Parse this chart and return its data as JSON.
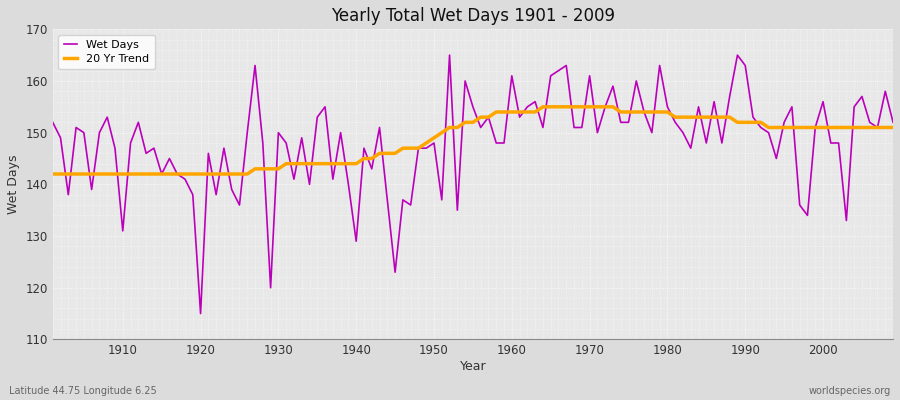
{
  "title": "Yearly Total Wet Days 1901 - 2009",
  "xlabel": "Year",
  "ylabel": "Wet Days",
  "footer_left": "Latitude 44.75 Longitude 6.25",
  "footer_right": "worldspecies.org",
  "legend_wet": "Wet Days",
  "legend_trend": "20 Yr Trend",
  "wet_color": "#BB00BB",
  "trend_color": "#FFA500",
  "bg_color": "#E8E8E8",
  "plot_bg_color": "#EBEBEB",
  "ylim": [
    110,
    170
  ],
  "xlim": [
    1901,
    2009
  ],
  "yticks": [
    110,
    120,
    130,
    140,
    150,
    160,
    170
  ],
  "years": [
    1901,
    1902,
    1903,
    1904,
    1905,
    1906,
    1907,
    1908,
    1909,
    1910,
    1911,
    1912,
    1913,
    1914,
    1915,
    1916,
    1917,
    1918,
    1919,
    1920,
    1921,
    1922,
    1923,
    1924,
    1925,
    1926,
    1927,
    1928,
    1929,
    1930,
    1931,
    1932,
    1933,
    1934,
    1935,
    1936,
    1937,
    1938,
    1939,
    1940,
    1941,
    1942,
    1943,
    1944,
    1945,
    1946,
    1947,
    1948,
    1949,
    1950,
    1951,
    1952,
    1953,
    1954,
    1955,
    1956,
    1957,
    1958,
    1959,
    1960,
    1961,
    1962,
    1963,
    1964,
    1965,
    1966,
    1967,
    1968,
    1969,
    1970,
    1971,
    1972,
    1973,
    1974,
    1975,
    1976,
    1977,
    1978,
    1979,
    1980,
    1981,
    1982,
    1983,
    1984,
    1985,
    1986,
    1987,
    1988,
    1989,
    1990,
    1991,
    1992,
    1993,
    1994,
    1995,
    1996,
    1997,
    1998,
    1999,
    2000,
    2001,
    2002,
    2003,
    2004,
    2005,
    2006,
    2007,
    2008,
    2009
  ],
  "wet_days": [
    152,
    149,
    138,
    151,
    150,
    139,
    150,
    153,
    147,
    131,
    148,
    152,
    146,
    147,
    142,
    145,
    142,
    141,
    138,
    115,
    146,
    138,
    147,
    139,
    136,
    150,
    163,
    148,
    120,
    150,
    148,
    141,
    149,
    140,
    153,
    155,
    141,
    150,
    140,
    129,
    147,
    143,
    151,
    137,
    123,
    137,
    136,
    147,
    147,
    148,
    137,
    165,
    135,
    160,
    155,
    151,
    153,
    148,
    148,
    161,
    153,
    155,
    156,
    151,
    161,
    162,
    163,
    151,
    151,
    161,
    150,
    155,
    159,
    152,
    152,
    160,
    154,
    150,
    163,
    155,
    152,
    150,
    147,
    155,
    148,
    156,
    148,
    157,
    165,
    163,
    153,
    151,
    150,
    145,
    152,
    155,
    136,
    134,
    151,
    156,
    148,
    148,
    133,
    155,
    157,
    152,
    151,
    158,
    152
  ],
  "trend": [
    142,
    142,
    142,
    142,
    142,
    142,
    142,
    142,
    142,
    142,
    142,
    142,
    142,
    142,
    142,
    142,
    142,
    142,
    142,
    142,
    142,
    142,
    142,
    142,
    142,
    142,
    143,
    143,
    143,
    143,
    144,
    144,
    144,
    144,
    144,
    144,
    144,
    144,
    144,
    144,
    145,
    145,
    146,
    146,
    146,
    147,
    147,
    147,
    148,
    149,
    150,
    151,
    151,
    152,
    152,
    153,
    153,
    154,
    154,
    154,
    154,
    154,
    154,
    155,
    155,
    155,
    155,
    155,
    155,
    155,
    155,
    155,
    155,
    154,
    154,
    154,
    154,
    154,
    154,
    154,
    153,
    153,
    153,
    153,
    153,
    153,
    153,
    153,
    152,
    152,
    152,
    152,
    151,
    151,
    151,
    151,
    151,
    151,
    151,
    151,
    151,
    151,
    151,
    151,
    151,
    151,
    151,
    151,
    151
  ]
}
